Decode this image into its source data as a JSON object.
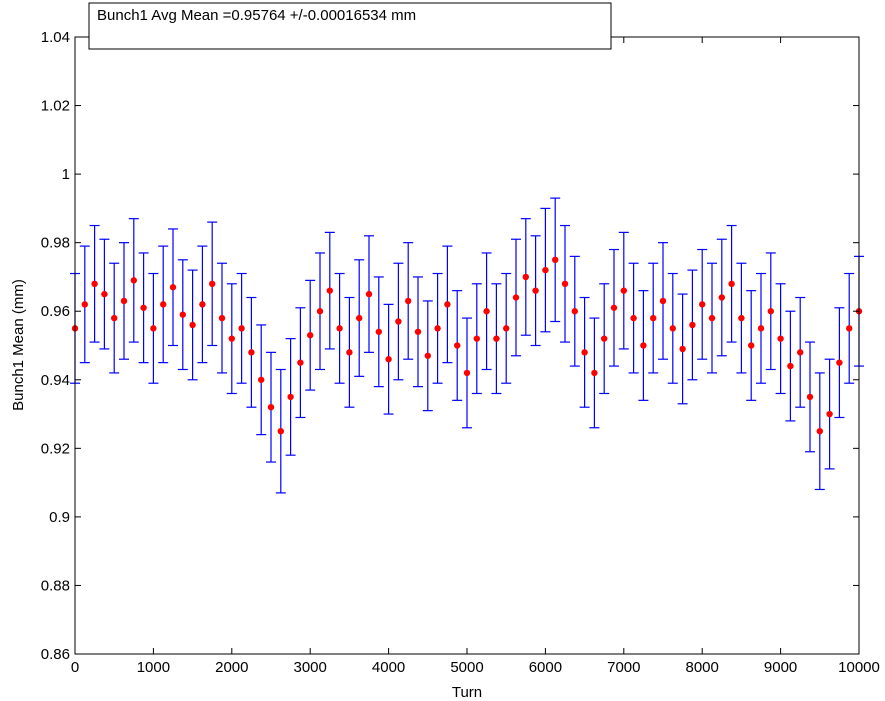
{
  "chart_data": {
    "type": "scatter",
    "title": "",
    "xlabel": "Turn",
    "ylabel": "Bunch1 Mean (mm)",
    "xlim": [
      0,
      10000
    ],
    "ylim": [
      0.86,
      1.04
    ],
    "xticks": [
      0,
      1000,
      2000,
      3000,
      4000,
      5000,
      6000,
      7000,
      8000,
      9000,
      10000
    ],
    "xtick_labels": [
      "0",
      "1000",
      "2000",
      "3000",
      "4000",
      "5000",
      "6000",
      "7000",
      "8000",
      "9000",
      "10000"
    ],
    "yticks": [
      0.86,
      0.88,
      0.9,
      0.92,
      0.94,
      0.96,
      0.98,
      1.0,
      1.02,
      1.04
    ],
    "ytick_labels": [
      "0.86",
      "0.88",
      "0.9",
      "0.92",
      "0.94",
      "0.96",
      "0.98",
      "1",
      "1.02",
      "1.04"
    ],
    "grid": false,
    "annotation": "Bunch1 Avg Mean =0.95764 +/-0.00016534 mm",
    "annotation_position": "top-left",
    "colors": {
      "errorbar": "#0000ff",
      "marker": "#ff0000",
      "axes": "#000000"
    },
    "x": [
      0,
      125,
      250,
      375,
      500,
      625,
      750,
      875,
      1000,
      1125,
      1250,
      1375,
      1500,
      1625,
      1750,
      1875,
      2000,
      2125,
      2250,
      2375,
      2500,
      2625,
      2750,
      2875,
      3000,
      3125,
      3250,
      3375,
      3500,
      3625,
      3750,
      3875,
      4000,
      4125,
      4250,
      4375,
      4500,
      4625,
      4750,
      4875,
      5000,
      5125,
      5250,
      5375,
      5500,
      5625,
      5750,
      5875,
      6000,
      6125,
      6250,
      6375,
      6500,
      6625,
      6750,
      6875,
      7000,
      7125,
      7250,
      7375,
      7500,
      7625,
      7750,
      7875,
      8000,
      8125,
      8250,
      8375,
      8500,
      8625,
      8750,
      8875,
      9000,
      9125,
      9250,
      9375,
      9500,
      9625,
      9750,
      9875,
      10000
    ],
    "y": [
      0.955,
      0.962,
      0.968,
      0.965,
      0.958,
      0.963,
      0.969,
      0.961,
      0.955,
      0.962,
      0.967,
      0.959,
      0.956,
      0.962,
      0.968,
      0.958,
      0.952,
      0.955,
      0.948,
      0.94,
      0.932,
      0.925,
      0.935,
      0.945,
      0.953,
      0.96,
      0.966,
      0.955,
      0.948,
      0.958,
      0.965,
      0.954,
      0.946,
      0.957,
      0.963,
      0.954,
      0.947,
      0.955,
      0.962,
      0.95,
      0.942,
      0.952,
      0.96,
      0.952,
      0.955,
      0.964,
      0.97,
      0.966,
      0.972,
      0.975,
      0.968,
      0.96,
      0.948,
      0.942,
      0.952,
      0.961,
      0.966,
      0.958,
      0.95,
      0.958,
      0.963,
      0.955,
      0.949,
      0.956,
      0.962,
      0.958,
      0.964,
      0.968,
      0.958,
      0.95,
      0.955,
      0.96,
      0.952,
      0.944,
      0.948,
      0.935,
      0.925,
      0.93,
      0.945,
      0.955,
      0.96
    ],
    "error": [
      0.016,
      0.017,
      0.017,
      0.016,
      0.016,
      0.017,
      0.018,
      0.016,
      0.016,
      0.017,
      0.017,
      0.016,
      0.016,
      0.017,
      0.018,
      0.016,
      0.016,
      0.016,
      0.016,
      0.016,
      0.016,
      0.018,
      0.017,
      0.016,
      0.016,
      0.017,
      0.017,
      0.016,
      0.016,
      0.017,
      0.017,
      0.016,
      0.016,
      0.017,
      0.017,
      0.016,
      0.016,
      0.016,
      0.017,
      0.016,
      0.016,
      0.016,
      0.017,
      0.016,
      0.016,
      0.017,
      0.017,
      0.016,
      0.018,
      0.018,
      0.017,
      0.016,
      0.016,
      0.016,
      0.016,
      0.017,
      0.017,
      0.016,
      0.016,
      0.016,
      0.017,
      0.016,
      0.016,
      0.016,
      0.016,
      0.016,
      0.017,
      0.017,
      0.016,
      0.016,
      0.016,
      0.017,
      0.016,
      0.016,
      0.016,
      0.016,
      0.017,
      0.016,
      0.016,
      0.016,
      0.016
    ]
  }
}
